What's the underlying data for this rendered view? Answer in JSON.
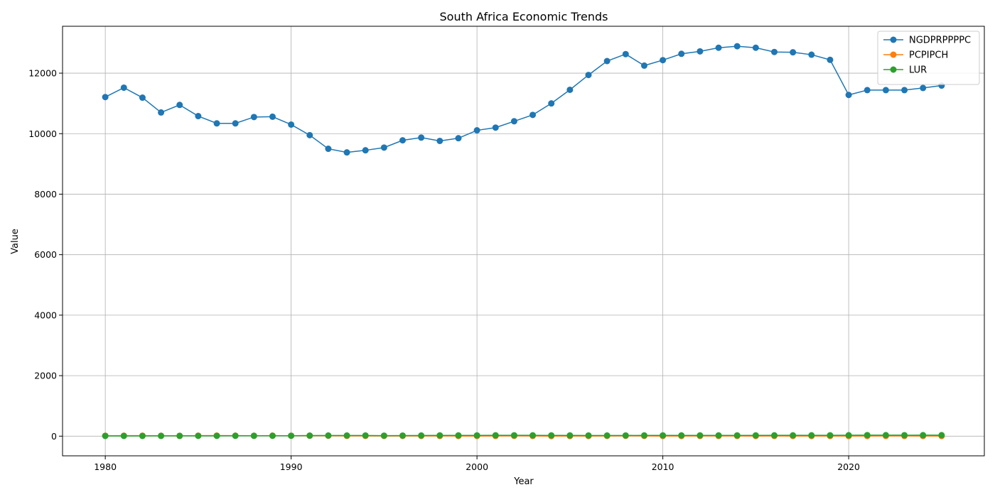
{
  "chart_data": {
    "type": "line",
    "title": "South Africa Economic Trends",
    "xlabel": "Year",
    "ylabel": "Value",
    "xlim": [
      1977.7,
      2027.3
    ],
    "ylim": [
      -650,
      13550
    ],
    "xticks": [
      1980,
      1990,
      2000,
      2010,
      2020
    ],
    "yticks": [
      0,
      2000,
      4000,
      6000,
      8000,
      10000,
      12000
    ],
    "grid": true,
    "legend_position": "top-right",
    "x": [
      1980,
      1981,
      1982,
      1983,
      1984,
      1985,
      1986,
      1987,
      1988,
      1989,
      1990,
      1991,
      1992,
      1993,
      1994,
      1995,
      1996,
      1997,
      1998,
      1999,
      2000,
      2001,
      2002,
      2003,
      2004,
      2005,
      2006,
      2007,
      2008,
      2009,
      2010,
      2011,
      2012,
      2013,
      2014,
      2015,
      2016,
      2017,
      2018,
      2019,
      2020,
      2021,
      2022,
      2023,
      2024,
      2025
    ],
    "series": [
      {
        "name": "NGDPRPPPPC",
        "color": "#1f77b4",
        "values": [
          11210,
          11520,
          11190,
          10700,
          10950,
          10580,
          10340,
          10340,
          10550,
          10560,
          10300,
          9950,
          9500,
          9380,
          9450,
          9540,
          9780,
          9870,
          9760,
          9850,
          10110,
          10200,
          10410,
          10620,
          11000,
          11450,
          11940,
          12400,
          12630,
          12250,
          12430,
          12640,
          12720,
          12840,
          12890,
          12840,
          12700,
          12690,
          12610,
          12440,
          11280,
          11440,
          11440,
          11440,
          11510,
          11590
        ]
      },
      {
        "name": "PCPIPCH",
        "color": "#ff7f0e",
        "values": [
          13.8,
          15.2,
          14.6,
          12.3,
          11.5,
          16.3,
          18.7,
          16.2,
          12.8,
          14.7,
          14.3,
          15.3,
          13.9,
          9.7,
          9.0,
          8.7,
          7.4,
          8.6,
          6.9,
          5.2,
          5.3,
          5.7,
          9.2,
          5.8,
          1.4,
          3.4,
          4.6,
          7.1,
          11.5,
          7.1,
          4.3,
          5.0,
          5.7,
          5.8,
          6.1,
          4.6,
          6.3,
          5.3,
          4.6,
          4.1,
          3.3,
          4.6,
          6.9,
          6.0,
          4.4,
          4.5
        ]
      },
      {
        "name": "LUR",
        "color": "#2ca02c",
        "values": [
          8.0,
          8.0,
          8.5,
          9.0,
          9.5,
          10.0,
          11.0,
          12.0,
          12.5,
          13.0,
          14.0,
          18.0,
          21.0,
          22.0,
          22.5,
          17.0,
          20.0,
          22.0,
          26.0,
          25.0,
          26.0,
          29.0,
          29.0,
          27.0,
          25.0,
          24.0,
          23.0,
          22.0,
          23.0,
          24.0,
          25.0,
          25.0,
          25.0,
          25.0,
          25.0,
          25.0,
          27.0,
          27.5,
          27.0,
          28.7,
          29.2,
          34.3,
          33.5,
          32.1,
          32.6,
          33.0
        ]
      }
    ]
  }
}
